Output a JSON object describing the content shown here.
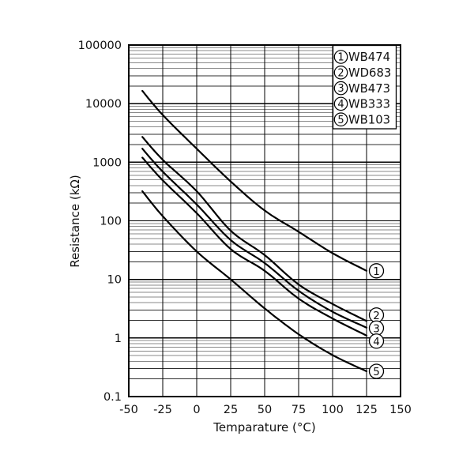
{
  "figure": {
    "background": "#ffffff",
    "border_color": "#000000",
    "major_grid_color": "#000000",
    "minor_grid_color": "#8a8a8a",
    "minor_grid_dark_color": "#2f2f2f",
    "curve_color": "#000000",
    "text_color": "#111111"
  },
  "chart_data": {
    "type": "line",
    "title": "",
    "xlabel": "Temparature (°C)",
    "ylabel": "Resistance (kΩ)",
    "x_scale": "linear",
    "y_scale": "log",
    "xlim": [
      -50,
      150
    ],
    "ylim": [
      0.1,
      100000
    ],
    "x_ticks": [
      -50,
      -25,
      0,
      25,
      50,
      75,
      100,
      125,
      150
    ],
    "y_ticks": [
      "100000",
      "10000",
      "1000",
      "100",
      "10",
      "1",
      "0.1"
    ],
    "grid": "vertical black lines every 25°C; horizontal log grid: decade lines black, minor decade lines gray",
    "legend_position": "top-right inside plot",
    "x": [
      -40,
      -25,
      0,
      25,
      50,
      75,
      100,
      125
    ],
    "series": [
      {
        "marker": "1",
        "name": "WB474",
        "values": [
          16500,
          6400,
          1700,
          470,
          150,
          65,
          28,
          14
        ]
      },
      {
        "marker": "2",
        "name": "WD683",
        "values": [
          2700,
          1100,
          320,
          68,
          26,
          8.2,
          3.8,
          1.95
        ]
      },
      {
        "marker": "3",
        "name": "WB473",
        "values": [
          1700,
          690,
          190,
          47,
          19,
          6.4,
          2.8,
          1.5
        ]
      },
      {
        "marker": "4",
        "name": "WB333",
        "values": [
          1200,
          490,
          135,
          33,
          14,
          4.7,
          2.15,
          1.1
        ]
      },
      {
        "marker": "5",
        "name": "WB103",
        "values": [
          320,
          120,
          30,
          10,
          3.2,
          1.16,
          0.51,
          0.27
        ]
      }
    ]
  }
}
